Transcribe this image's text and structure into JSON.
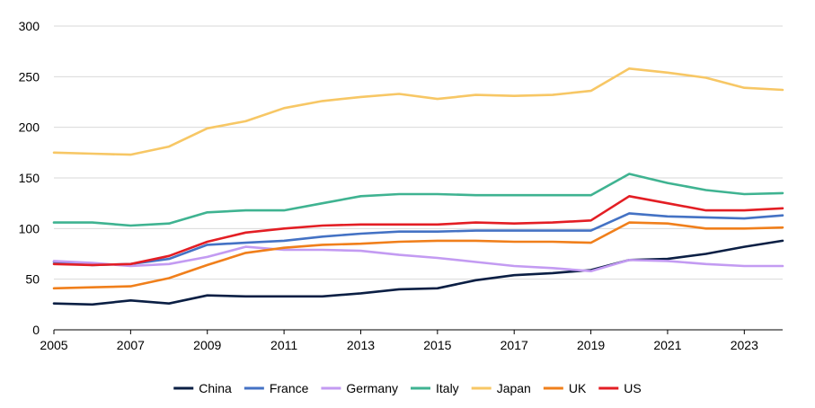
{
  "chart_data": {
    "type": "line",
    "title": "",
    "xlabel": "",
    "ylabel": "",
    "x": [
      2005,
      2006,
      2007,
      2008,
      2009,
      2010,
      2011,
      2012,
      2013,
      2014,
      2015,
      2016,
      2017,
      2018,
      2019,
      2020,
      2021,
      2022,
      2023,
      2024
    ],
    "xlim": [
      2005,
      2024
    ],
    "ylim": [
      0,
      300
    ],
    "x_ticks": [
      2005,
      2007,
      2009,
      2011,
      2013,
      2015,
      2017,
      2019,
      2021,
      2023
    ],
    "x_tick_labels": [
      "2005",
      "2007",
      "2009",
      "2011",
      "2013",
      "2015",
      "2017",
      "2019",
      "2021",
      "2023"
    ],
    "y_ticks": [
      0,
      50,
      100,
      150,
      200,
      250,
      300
    ],
    "y_tick_labels": [
      "0",
      "50",
      "100",
      "150",
      "200",
      "250",
      "300"
    ],
    "grid": "horizontal",
    "legend_position": "bottom",
    "series": [
      {
        "name": "China",
        "color": "#0b1f44",
        "values": [
          26,
          25,
          29,
          26,
          34,
          33,
          33,
          33,
          36,
          40,
          41,
          49,
          54,
          56,
          59,
          69,
          70,
          75,
          82,
          88
        ]
      },
      {
        "name": "France",
        "color": "#4472c4",
        "values": [
          67,
          64,
          65,
          70,
          84,
          86,
          88,
          92,
          95,
          97,
          97,
          98,
          98,
          98,
          98,
          115,
          112,
          111,
          110,
          113
        ]
      },
      {
        "name": "Germany",
        "color": "#c39bf2",
        "values": [
          68,
          66,
          63,
          65,
          72,
          82,
          79,
          79,
          78,
          74,
          71,
          67,
          63,
          61,
          58,
          69,
          68,
          65,
          63,
          63
        ]
      },
      {
        "name": "Italy",
        "color": "#3fb391",
        "values": [
          106,
          106,
          103,
          105,
          116,
          118,
          118,
          125,
          132,
          134,
          134,
          133,
          133,
          133,
          133,
          154,
          145,
          138,
          134,
          135
        ]
      },
      {
        "name": "Japan",
        "color": "#f7c765",
        "values": [
          175,
          174,
          173,
          181,
          199,
          206,
          219,
          226,
          230,
          233,
          228,
          232,
          231,
          232,
          236,
          258,
          254,
          249,
          239,
          237
        ]
      },
      {
        "name": "UK",
        "color": "#f07f1b",
        "values": [
          41,
          42,
          43,
          51,
          64,
          76,
          81,
          84,
          85,
          87,
          88,
          88,
          87,
          87,
          86,
          106,
          105,
          100,
          100,
          101
        ]
      },
      {
        "name": "US",
        "color": "#e31e24",
        "values": [
          65,
          64,
          65,
          73,
          87,
          96,
          100,
          103,
          104,
          104,
          104,
          106,
          105,
          106,
          108,
          132,
          125,
          118,
          118,
          120
        ]
      }
    ]
  }
}
